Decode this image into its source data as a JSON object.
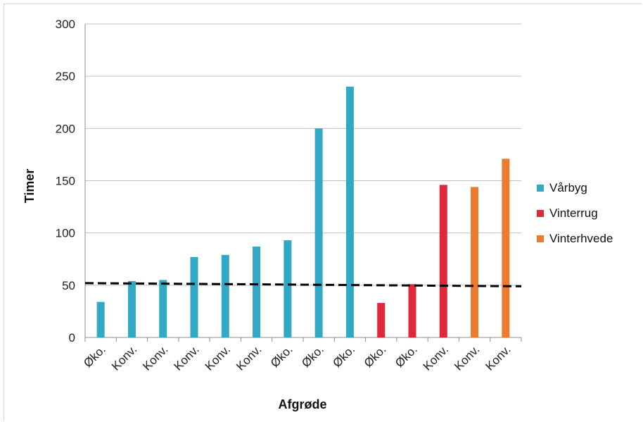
{
  "chart_data": {
    "type": "bar",
    "title": "",
    "xlabel": "Afgrøde",
    "ylabel": "Timer",
    "ylim": [
      0,
      300
    ],
    "yticks": [
      0,
      50,
      100,
      150,
      200,
      250,
      300
    ],
    "grid": true,
    "legend_position": "right",
    "categories": [
      "Øko.",
      "Konv.",
      "Konv.",
      "Konv.",
      "Konv.",
      "Konv.",
      "Øko.",
      "Øko.",
      "Øko.",
      "Øko.",
      "Øko.",
      "Konv.",
      "Konv.",
      "Konv."
    ],
    "series": [
      {
        "name": "Vårbyg",
        "color": "#31a9c4",
        "values": [
          34,
          54,
          55,
          77,
          79,
          87,
          93,
          200,
          240,
          null,
          null,
          null,
          null,
          null
        ]
      },
      {
        "name": "Vinterrug",
        "color": "#e0283a",
        "values": [
          null,
          null,
          null,
          null,
          null,
          null,
          null,
          null,
          null,
          33,
          51,
          146,
          null,
          null
        ]
      },
      {
        "name": "Vinterhvede",
        "color": "#ee7a2b",
        "values": [
          null,
          null,
          null,
          null,
          null,
          null,
          null,
          null,
          null,
          null,
          null,
          null,
          144,
          171
        ]
      }
    ],
    "reference_line": {
      "style": "dashed",
      "color": "#000000",
      "y_start": 52,
      "y_end": 49
    }
  }
}
